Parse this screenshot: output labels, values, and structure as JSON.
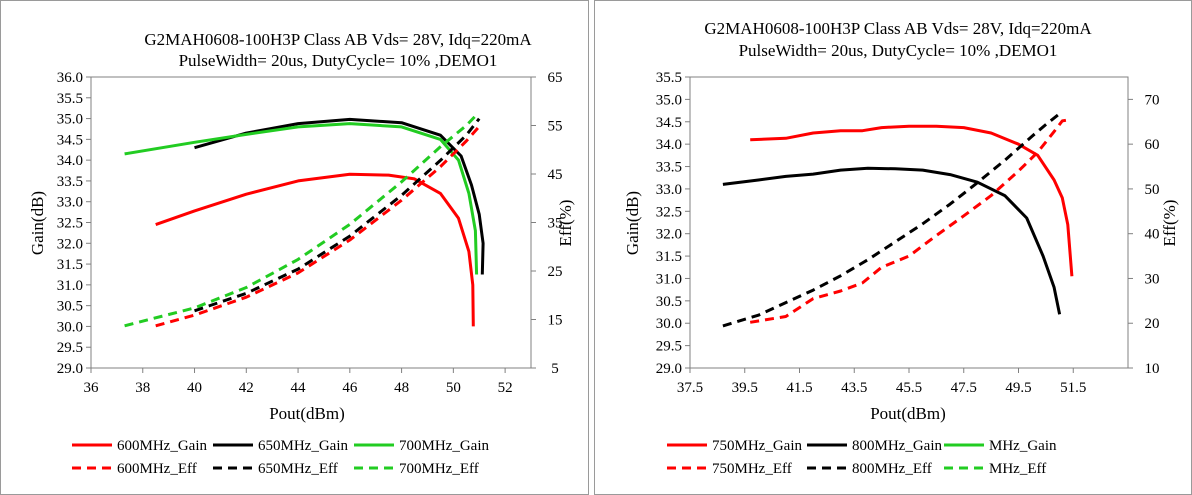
{
  "chart_data": [
    {
      "type": "line",
      "title": "G2MAH0608-100H3P Class AB Vds= 28V, Idq=220mA",
      "subtitle": "PulseWidth= 20us, DutyCycle= 10% ,DEMO1",
      "xlabel": "Pout(dBm)",
      "ylabel": "Gain(dB)",
      "y2label": "Eff(%)",
      "xlim": [
        36,
        53
      ],
      "xticks": [
        "36",
        "38",
        "40",
        "42",
        "44",
        "46",
        "48",
        "50",
        "52"
      ],
      "ylim": [
        29.0,
        36.0
      ],
      "yticks": [
        "29.0",
        "29.5",
        "30.0",
        "30.5",
        "31.0",
        "31.5",
        "32.0",
        "32.5",
        "33.0",
        "33.5",
        "34.0",
        "34.5",
        "35.0",
        "35.5",
        "36.0"
      ],
      "y2lim": [
        5,
        65
      ],
      "y2ticks": [
        "5",
        "15",
        "25",
        "35",
        "45",
        "55",
        "65"
      ],
      "grid": false,
      "legend_position": "bottom",
      "series": [
        {
          "name": "600MHz_Gain",
          "axis": "left",
          "color": "#ff0000",
          "dash": false,
          "points": [
            [
              38.5,
              32.45
            ],
            [
              40,
              32.78
            ],
            [
              42,
              33.18
            ],
            [
              44,
              33.5
            ],
            [
              46,
              33.66
            ],
            [
              47.5,
              33.64
            ],
            [
              48.5,
              33.55
            ],
            [
              49.5,
              33.2
            ],
            [
              50.2,
              32.6
            ],
            [
              50.6,
              31.8
            ],
            [
              50.75,
              31.0
            ],
            [
              50.77,
              30.0
            ]
          ]
        },
        {
          "name": "650MHz_Gain",
          "axis": "left",
          "color": "#000000",
          "dash": false,
          "points": [
            [
              40,
              34.3
            ],
            [
              42,
              34.65
            ],
            [
              44,
              34.88
            ],
            [
              46,
              34.98
            ],
            [
              48,
              34.9
            ],
            [
              49.5,
              34.6
            ],
            [
              50.3,
              34.1
            ],
            [
              50.7,
              33.4
            ],
            [
              51.0,
              32.7
            ],
            [
              51.15,
              32.0
            ],
            [
              51.12,
              31.25
            ]
          ]
        },
        {
          "name": "700MHz_Gain",
          "axis": "left",
          "color": "#22cc22",
          "dash": false,
          "points": [
            [
              37.3,
              34.15
            ],
            [
              40,
              34.43
            ],
            [
              42,
              34.62
            ],
            [
              44,
              34.8
            ],
            [
              46,
              34.88
            ],
            [
              48,
              34.8
            ],
            [
              49.5,
              34.5
            ],
            [
              50.2,
              34.0
            ],
            [
              50.6,
              33.2
            ],
            [
              50.85,
              32.3
            ],
            [
              50.9,
              31.25
            ]
          ]
        },
        {
          "name": "600MHz_Eff",
          "axis": "right",
          "color": "#ff0000",
          "dash": true,
          "points": [
            [
              38.5,
              13.7
            ],
            [
              40,
              15.9
            ],
            [
              42,
              19.6
            ],
            [
              44,
              24.6
            ],
            [
              46,
              31.4
            ],
            [
              48,
              39.6
            ],
            [
              49.5,
              46.5
            ],
            [
              50.5,
              51.8
            ],
            [
              51,
              54.8
            ]
          ]
        },
        {
          "name": "650MHz_Eff",
          "axis": "right",
          "color": "#000000",
          "dash": true,
          "points": [
            [
              40,
              16.8
            ],
            [
              42,
              20.4
            ],
            [
              44,
              25.4
            ],
            [
              46,
              32.2
            ],
            [
              48,
              40.6
            ],
            [
              49.5,
              47.8
            ],
            [
              50.5,
              53
            ],
            [
              51,
              56.4
            ]
          ]
        },
        {
          "name": "700MHz_Eff",
          "axis": "right",
          "color": "#22cc22",
          "dash": true,
          "points": [
            [
              37.3,
              13.7
            ],
            [
              40,
              17.4
            ],
            [
              42,
              21.6
            ],
            [
              44,
              27.4
            ],
            [
              46,
              34.6
            ],
            [
              48,
              43.4
            ],
            [
              49.5,
              50.6
            ],
            [
              50.5,
              55
            ],
            [
              50.9,
              57.2
            ]
          ]
        }
      ]
    },
    {
      "type": "line",
      "title": "G2MAH0608-100H3P Class AB Vds= 28V, Idq=220mA",
      "subtitle": "PulseWidth= 20us, DutyCycle= 10% ,DEMO1",
      "xlabel": "Pout(dBm)",
      "ylabel": "Gain(dB)",
      "y2label": "Eff(%)",
      "xlim": [
        37.5,
        53.5
      ],
      "xticks": [
        "37.5",
        "39.5",
        "41.5",
        "43.5",
        "45.5",
        "47.5",
        "49.5",
        "51.5"
      ],
      "ylim": [
        29.0,
        35.5
      ],
      "yticks": [
        "29.0",
        "29.5",
        "30.0",
        "30.5",
        "31.0",
        "31.5",
        "32.0",
        "32.5",
        "33.0",
        "33.5",
        "34.0",
        "34.5",
        "35.0",
        "35.5"
      ],
      "y2lim": [
        10,
        75
      ],
      "y2ticks": [
        "10",
        "20",
        "30",
        "40",
        "50",
        "60",
        "70"
      ],
      "grid": false,
      "legend_position": "bottom",
      "series": [
        {
          "name": "750MHz_Gain",
          "axis": "left",
          "color": "#ff0000",
          "dash": false,
          "points": [
            [
              39.7,
              34.1
            ],
            [
              41,
              34.13
            ],
            [
              42,
              34.25
            ],
            [
              43,
              34.3
            ],
            [
              43.8,
              34.3
            ],
            [
              44.5,
              34.37
            ],
            [
              45.5,
              34.4
            ],
            [
              46.5,
              34.4
            ],
            [
              47.5,
              34.37
            ],
            [
              48.5,
              34.25
            ],
            [
              49.5,
              34.0
            ],
            [
              50.2,
              33.75
            ],
            [
              50.8,
              33.2
            ],
            [
              51.1,
              32.8
            ],
            [
              51.3,
              32.2
            ],
            [
              51.45,
              31.05
            ]
          ]
        },
        {
          "name": "800MHz_Gain",
          "axis": "left",
          "color": "#000000",
          "dash": false,
          "points": [
            [
              38.7,
              33.1
            ],
            [
              40,
              33.2
            ],
            [
              41,
              33.28
            ],
            [
              42,
              33.33
            ],
            [
              43,
              33.42
            ],
            [
              44,
              33.46
            ],
            [
              45,
              33.45
            ],
            [
              46,
              33.42
            ],
            [
              47,
              33.32
            ],
            [
              48,
              33.15
            ],
            [
              49,
              32.85
            ],
            [
              49.8,
              32.35
            ],
            [
              50.4,
              31.5
            ],
            [
              50.8,
              30.8
            ],
            [
              51.0,
              30.2
            ]
          ]
        },
        {
          "name": "750MHz_Eff",
          "axis": "right",
          "color": "#ff0000",
          "dash": true,
          "points": [
            [
              39.7,
              20.2
            ],
            [
              41,
              21.5
            ],
            [
              42,
              25.5
            ],
            [
              43,
              27.2
            ],
            [
              43.8,
              29.0
            ],
            [
              44.5,
              32.5
            ],
            [
              45.5,
              35.0
            ],
            [
              46.5,
              39.6
            ],
            [
              47.5,
              44.0
            ],
            [
              48.5,
              48.5
            ],
            [
              49.5,
              54.0
            ],
            [
              50.2,
              58.2
            ],
            [
              50.8,
              62.8
            ],
            [
              51.1,
              65.2
            ],
            [
              51.3,
              65.4
            ]
          ]
        },
        {
          "name": "800MHz_Eff",
          "axis": "right",
          "color": "#000000",
          "dash": true,
          "points": [
            [
              38.7,
              19.4
            ],
            [
              40,
              21.8
            ],
            [
              41,
              24.6
            ],
            [
              42,
              27.4
            ],
            [
              43,
              30.6
            ],
            [
              44,
              34.2
            ],
            [
              45,
              38.2
            ],
            [
              46,
              42.2
            ],
            [
              47,
              46.6
            ],
            [
              48,
              51.4
            ],
            [
              49,
              56.4
            ],
            [
              50,
              61.8
            ],
            [
              50.5,
              64.4
            ],
            [
              51.0,
              66.8
            ]
          ]
        }
      ],
      "extra_legend": [
        {
          "name": "MHz_Gain",
          "color": "#22cc22",
          "dash": false
        },
        {
          "name": "MHz_Eff",
          "color": "#22cc22",
          "dash": true
        }
      ]
    }
  ]
}
